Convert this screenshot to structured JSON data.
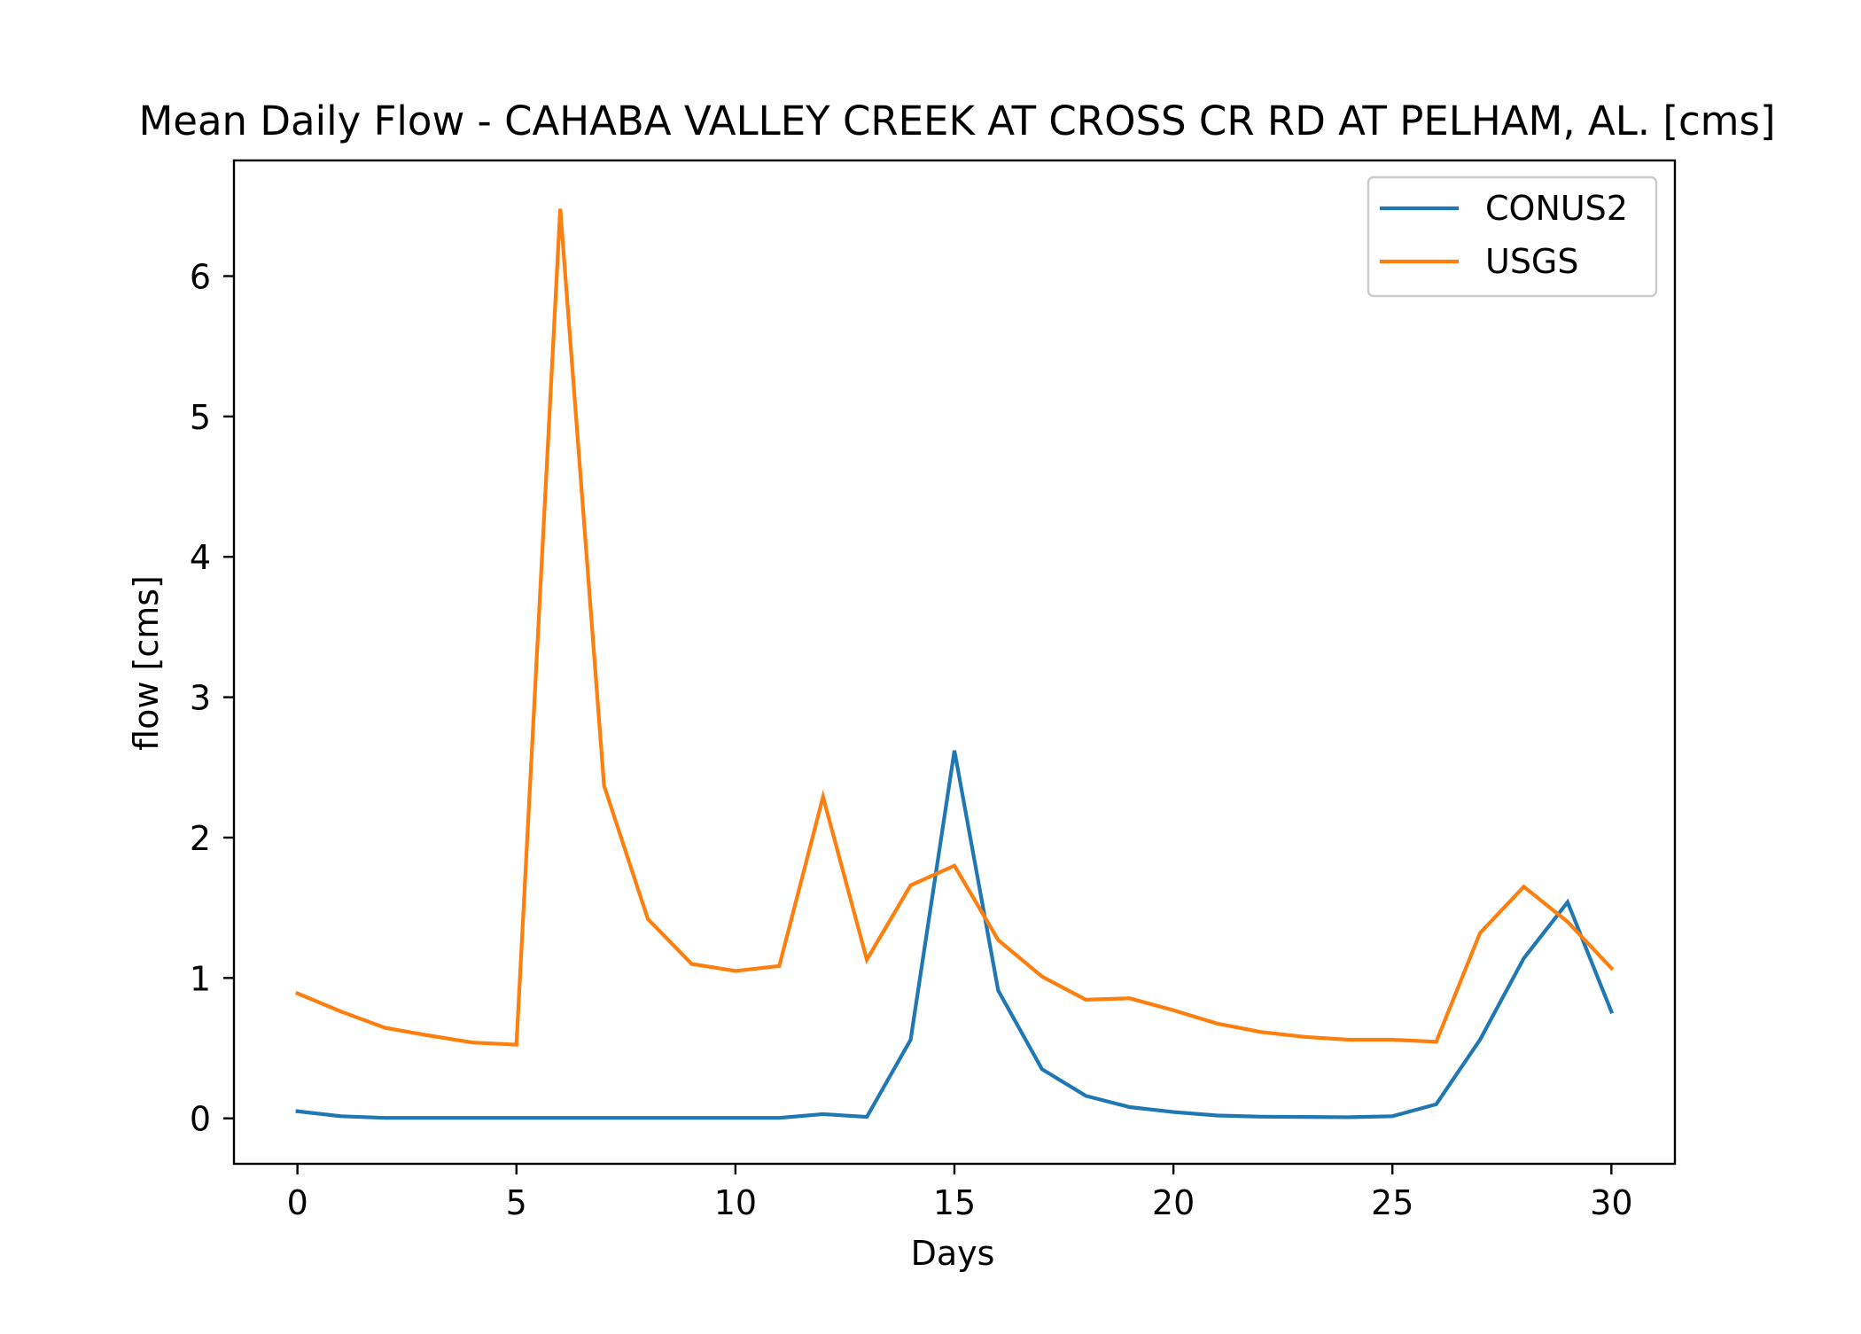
{
  "chart_data": {
    "type": "line",
    "title": "Mean Daily Flow - CAHABA VALLEY CREEK AT CROSS CR RD AT PELHAM, AL. [cms]",
    "xlabel": "Days",
    "ylabel": "flow [cms]",
    "xlim": [
      -1.45,
      31.45
    ],
    "ylim": [
      -0.324,
      6.824
    ],
    "xticks": [
      0,
      5,
      10,
      15,
      20,
      25,
      30
    ],
    "yticks": [
      0,
      1,
      2,
      3,
      4,
      5,
      6
    ],
    "grid": false,
    "legend_position": "top-right",
    "x": [
      0,
      1,
      2,
      3,
      4,
      5,
      6,
      7,
      8,
      9,
      10,
      11,
      12,
      13,
      14,
      15,
      16,
      17,
      18,
      19,
      20,
      21,
      22,
      23,
      24,
      25,
      26,
      27,
      28,
      29,
      30
    ],
    "series": [
      {
        "name": "CONUS2",
        "color": "#1f77b4",
        "values": [
          0.05,
          0.015,
          0.003,
          0.003,
          0.003,
          0.003,
          0.003,
          0.003,
          0.003,
          0.003,
          0.003,
          0.003,
          0.03,
          0.01,
          0.56,
          2.62,
          0.91,
          0.35,
          0.16,
          0.08,
          0.045,
          0.02,
          0.012,
          0.01,
          0.008,
          0.015,
          0.1,
          0.56,
          1.14,
          1.54,
          0.76
        ]
      },
      {
        "name": "USGS",
        "color": "#ff7f0e",
        "values": [
          0.89,
          0.76,
          0.645,
          0.59,
          0.54,
          0.525,
          6.48,
          2.37,
          1.42,
          1.1,
          1.05,
          1.085,
          2.29,
          1.13,
          1.66,
          1.8,
          1.27,
          1.01,
          0.845,
          0.855,
          0.77,
          0.675,
          0.615,
          0.58,
          0.56,
          0.56,
          0.545,
          1.32,
          1.65,
          1.4,
          1.07
        ]
      }
    ]
  }
}
